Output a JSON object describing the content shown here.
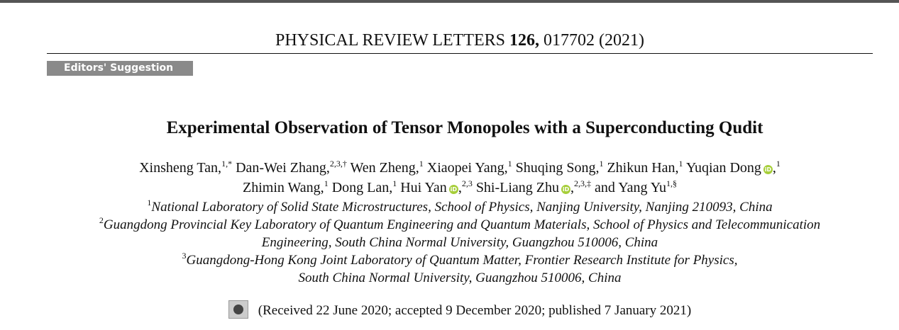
{
  "header": {
    "journal": "PHYSICAL REVIEW LETTERS",
    "volume": "126,",
    "article": "017702 (2021)"
  },
  "badge": "Editors' Suggestion",
  "title": "Experimental Observation of Tensor Monopoles with a Superconducting Qudit",
  "authors": [
    [
      {
        "text": "Xinsheng Tan,",
        "sup": "1,*"
      },
      {
        "text": "Dan-Wei Zhang,",
        "sup": "2,3,†"
      },
      {
        "text": "Wen Zheng,",
        "sup": "1"
      },
      {
        "text": "Xiaopei Yang,",
        "sup": "1"
      },
      {
        "text": "Shuqing Song,",
        "sup": "1"
      },
      {
        "text": "Zhikun Han,",
        "sup": "1"
      },
      {
        "text": "Yuqian Dong",
        "orcid": true,
        "after": ",",
        "sup": "1"
      }
    ],
    [
      {
        "text": "Zhimin Wang,",
        "sup": "1"
      },
      {
        "text": "Dong Lan,",
        "sup": "1"
      },
      {
        "text": "Hui Yan",
        "orcid": true,
        "after": ",",
        "sup": "2,3"
      },
      {
        "text": "Shi-Liang Zhu",
        "orcid": true,
        "after": ",",
        "sup": "2,3,‡"
      },
      {
        "text": "and"
      },
      {
        "text": "Yang Yu",
        "sup": "1,§"
      }
    ]
  ],
  "affiliations": [
    {
      "sup": "1",
      "lines": [
        "National Laboratory of Solid State Microstructures, School of Physics, Nanjing University, Nanjing 210093, China"
      ]
    },
    {
      "sup": "2",
      "lines": [
        "Guangdong Provincial Key Laboratory of Quantum Engineering and Quantum Materials, School of Physics and Telecommunication",
        "Engineering, South China Normal University, Guangzhou 510006, China"
      ]
    },
    {
      "sup": "3",
      "lines": [
        "Guangdong-Hong Kong Joint Laboratory of Quantum Matter, Frontier Research Institute for Physics,",
        "South China Normal University, Guangzhou 510006, China"
      ]
    }
  ],
  "received": "(Received 22 June 2020; accepted 9 December 2020; published 7 January 2021)"
}
